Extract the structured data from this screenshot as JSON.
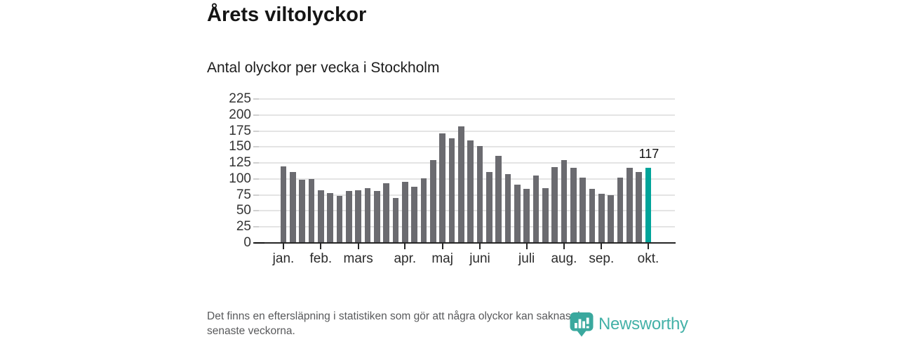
{
  "header": {
    "title": "Årets viltolyckor",
    "subtitle": "Antal olyckor per vecka i Stockholm"
  },
  "chart_data": {
    "type": "bar",
    "title": "Årets viltolyckor",
    "subtitle": "Antal olyckor per vecka i Stockholm",
    "ylabel": "Antal olyckor per vecka",
    "xlabel": "",
    "ylim": [
      0,
      225
    ],
    "y_ticks": [
      0,
      25,
      50,
      75,
      100,
      125,
      150,
      175,
      200,
      225
    ],
    "grid": "horizontal",
    "legend": "none",
    "values": [
      120,
      111,
      99,
      100,
      82,
      78,
      74,
      81,
      82,
      86,
      81,
      93,
      70,
      96,
      88,
      101,
      130,
      171,
      164,
      182,
      160,
      151,
      111,
      136,
      108,
      91,
      85,
      105,
      86,
      119,
      130,
      118,
      102,
      85,
      77,
      75,
      102,
      118,
      111,
      117
    ],
    "month_ticks": [
      {
        "label": "jan.",
        "bar_index": 0
      },
      {
        "label": "feb.",
        "bar_index": 4
      },
      {
        "label": "mars",
        "bar_index": 8
      },
      {
        "label": "apr.",
        "bar_index": 13
      },
      {
        "label": "maj",
        "bar_index": 17
      },
      {
        "label": "juni",
        "bar_index": 21
      },
      {
        "label": "juli",
        "bar_index": 26
      },
      {
        "label": "aug.",
        "bar_index": 30
      },
      {
        "label": "sep.",
        "bar_index": 34
      },
      {
        "label": "okt.",
        "bar_index": 39
      }
    ],
    "bar_color": "#6b6b70",
    "highlight_color": "#00a49a",
    "highlight_index": 39,
    "annotation": {
      "text": "117",
      "bar_index": 39
    }
  },
  "footer": {
    "line1": "Det finns en eftersläpning i statistiken som gör att några olyckor kan saknas de",
    "line2": "senaste veckorna."
  },
  "logo": {
    "text": "Newsworthy",
    "color": "#2aa79c",
    "pin_color": "#3aa89e"
  }
}
